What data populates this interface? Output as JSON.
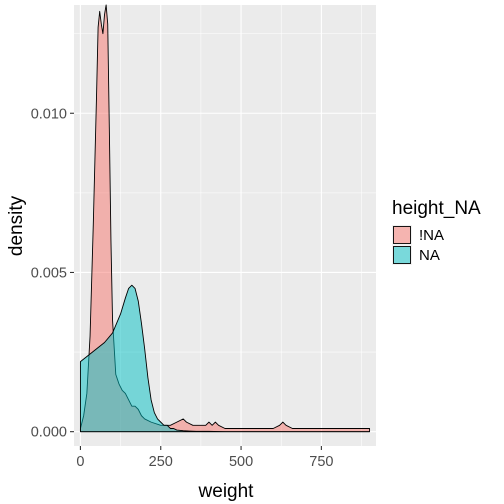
{
  "chart_data": {
    "type": "area",
    "subtype": "density",
    "xlabel": "weight",
    "ylabel": "density",
    "xlim": [
      -20,
      920
    ],
    "ylim": [
      -0.00045,
      0.0134
    ],
    "x_ticks": [
      0,
      250,
      500,
      750
    ],
    "x_tick_labels": [
      "0",
      "250",
      "500",
      "750"
    ],
    "y_ticks": [
      0.0,
      0.005,
      0.01
    ],
    "y_tick_labels": [
      "0.000",
      "0.005",
      "0.010"
    ],
    "grid": true,
    "legend": {
      "title": "height_NA",
      "placement": "right",
      "entries": [
        "!NA",
        "NA"
      ]
    },
    "series": [
      {
        "name": "!NA",
        "fill": "#F8766D",
        "x": [
          0,
          10,
          20,
          30,
          40,
          50,
          55,
          60,
          65,
          70,
          75,
          80,
          85,
          90,
          95,
          100,
          110,
          120,
          130,
          140,
          150,
          160,
          170,
          180,
          190,
          200,
          220,
          250,
          280,
          300,
          320,
          330,
          350,
          370,
          390,
          400,
          410,
          420,
          430,
          450,
          480,
          500,
          550,
          600,
          620,
          630,
          640,
          660,
          700,
          750,
          800,
          820,
          840,
          860,
          880,
          900
        ],
        "y": [
          0.0001,
          0.0005,
          0.0012,
          0.003,
          0.0065,
          0.0105,
          0.0127,
          0.0132,
          0.0128,
          0.0125,
          0.0131,
          0.0134,
          0.0128,
          0.0095,
          0.006,
          0.0035,
          0.0018,
          0.0015,
          0.0013,
          0.0012,
          0.001,
          0.0008,
          0.0008,
          0.0007,
          0.0005,
          0.0004,
          0.0003,
          0.0002,
          0.0002,
          0.0003,
          0.0004,
          0.0003,
          0.0002,
          0.0002,
          0.0002,
          0.0003,
          0.0002,
          0.0003,
          0.0002,
          0.0001,
          0.0001,
          0.0001,
          0.0001,
          0.0001,
          0.0002,
          0.0003,
          0.0002,
          0.0001,
          0.0001,
          0.0001,
          0.0001,
          0.0001,
          0.0001,
          0.0001,
          0.0001,
          0.0001
        ]
      },
      {
        "name": "NA",
        "fill": "#00BFC4",
        "x": [
          0,
          25,
          50,
          75,
          100,
          125,
          140,
          150,
          160,
          170,
          180,
          190,
          200,
          210,
          220,
          230,
          240,
          250,
          260,
          270,
          280,
          290,
          300,
          320,
          340,
          360,
          400,
          450,
          500,
          600,
          700,
          800,
          900
        ],
        "y": [
          0.0022,
          0.0024,
          0.0026,
          0.0028,
          0.0031,
          0.0037,
          0.0042,
          0.0045,
          0.0046,
          0.0045,
          0.0041,
          0.0034,
          0.0026,
          0.0017,
          0.001,
          0.0006,
          0.0004,
          0.0003,
          0.0002,
          0.0002,
          0.0001,
          0.0001,
          5e-05,
          3e-05,
          2e-05,
          1e-05,
          1e-05,
          0.0,
          0.0,
          0.0,
          0.0,
          0.0,
          0.0
        ]
      }
    ]
  }
}
